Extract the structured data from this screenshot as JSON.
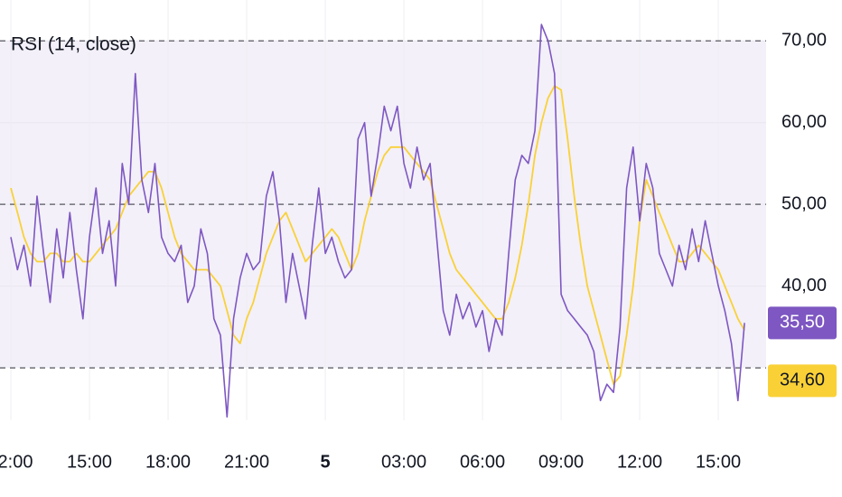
{
  "chart_data": {
    "type": "line",
    "title": "RSI (14, close)",
    "xlim": [
      -1.66,
      115.3
    ],
    "ylim": [
      23.6,
      75
    ],
    "xticks": [
      {
        "value": 0,
        "label": "2:00"
      },
      {
        "value": 12,
        "label": "15:00"
      },
      {
        "value": 24,
        "label": "18:00"
      },
      {
        "value": 36,
        "label": "21:00"
      },
      {
        "value": 48,
        "label": "5"
      },
      {
        "value": 60,
        "label": "03:00"
      },
      {
        "value": 72,
        "label": "06:00"
      },
      {
        "value": 84,
        "label": "09:00"
      },
      {
        "value": 96,
        "label": "12:00"
      },
      {
        "value": 108,
        "label": "15:00"
      }
    ],
    "yticks": [
      {
        "value": 40,
        "label": "40,00"
      },
      {
        "value": 50,
        "label": "50,00"
      },
      {
        "value": 60,
        "label": "60,00"
      },
      {
        "value": 70,
        "label": "70,00"
      }
    ],
    "band": [
      30,
      70
    ],
    "band_color": "#7e57c2",
    "levels": [
      30,
      50,
      70
    ],
    "grid": true,
    "series": [
      {
        "color": "#7e57c2",
        "last_label": "35,50",
        "values": [
          46,
          42,
          45,
          40,
          51,
          44,
          38,
          47,
          41,
          49,
          42,
          36,
          46,
          52,
          44,
          48,
          40,
          55,
          50,
          66,
          53,
          49,
          55,
          46,
          44,
          43,
          45,
          38,
          40,
          47,
          44,
          36,
          34,
          24,
          36,
          41,
          44,
          42,
          43,
          51,
          54,
          48,
          38,
          44,
          40,
          36,
          45,
          52,
          44,
          46,
          43,
          41,
          42,
          58,
          60,
          51,
          56,
          62,
          59,
          62,
          55,
          52,
          57,
          53,
          55,
          46,
          37,
          34,
          39,
          36,
          38,
          35,
          37,
          32,
          36,
          34,
          44,
          53,
          56,
          55,
          59,
          72,
          70,
          66,
          39,
          37,
          36,
          35,
          34,
          32,
          26,
          28,
          27,
          35,
          52,
          57,
          48,
          55,
          52,
          44,
          42,
          40,
          45,
          42,
          47,
          43,
          48,
          44,
          40,
          37,
          33,
          26,
          35.5
        ]
      },
      {
        "color": "#f9d137",
        "last_label": "34,60",
        "values": [
          52,
          49,
          46,
          44,
          43,
          43,
          44,
          44,
          43,
          43,
          44,
          43,
          43,
          44,
          45,
          46,
          47,
          49,
          51,
          52,
          53,
          54,
          54,
          52,
          49,
          46,
          44,
          43,
          42,
          42,
          42,
          41,
          40,
          37,
          34,
          33,
          36,
          38,
          41,
          44,
          46,
          48,
          49,
          47,
          45,
          43,
          44,
          45,
          46,
          47,
          46,
          44,
          42,
          44,
          48,
          51,
          54,
          56,
          57,
          57,
          57,
          56,
          55,
          54,
          53,
          50,
          47,
          44,
          42,
          41,
          40,
          39,
          38,
          37,
          36,
          36,
          38,
          41,
          45,
          50,
          56,
          60,
          63,
          64.5,
          64,
          58,
          51,
          45,
          40,
          37,
          34,
          31,
          28,
          29,
          34,
          40,
          48,
          53,
          51,
          49,
          47,
          45,
          43,
          43,
          44,
          45,
          44,
          43,
          42,
          40,
          38,
          36,
          34.6
        ]
      }
    ]
  }
}
